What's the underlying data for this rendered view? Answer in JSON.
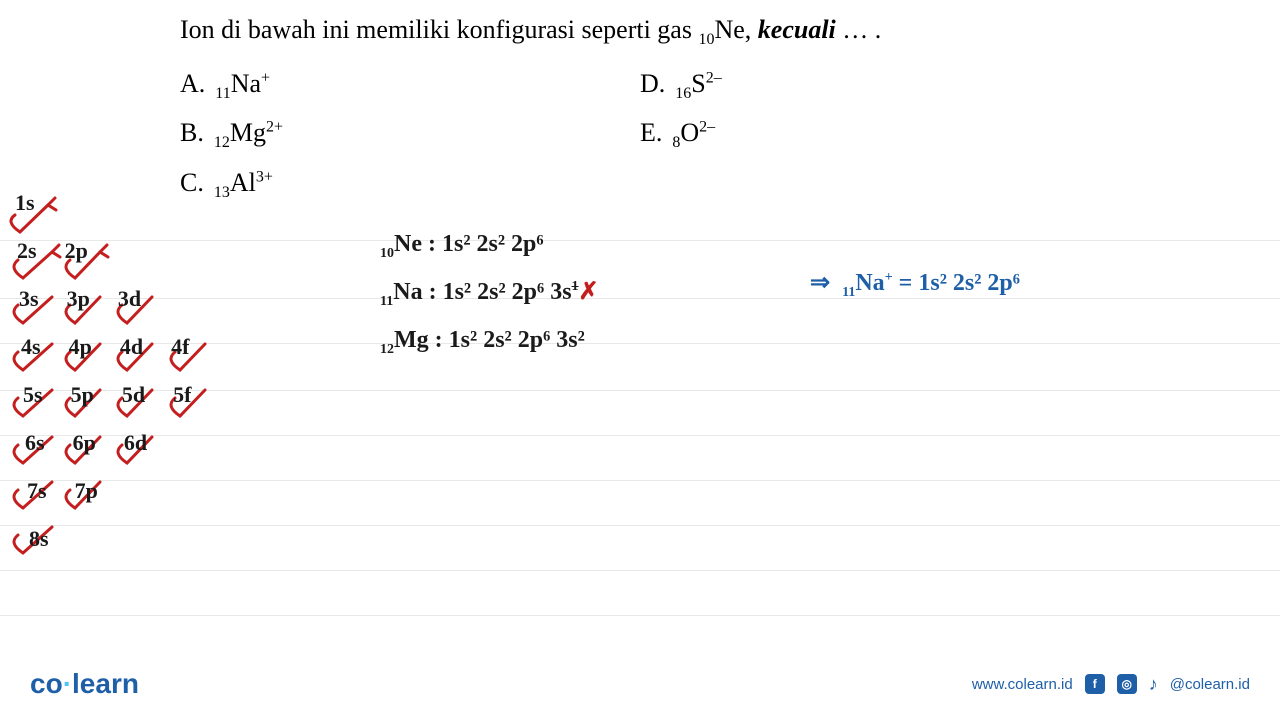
{
  "question": {
    "prefix": "Ion di bawah ini memiliki konfigurasi seperti gas ",
    "gas_sub": "10",
    "gas_symbol": "Ne, ",
    "except_word": "kecuali",
    "suffix": " … ."
  },
  "options": {
    "A": {
      "label": "A.",
      "sub": "11",
      "element": "Na",
      "sup": "+"
    },
    "B": {
      "label": "B.",
      "sub": "12",
      "element": "Mg",
      "sup": "2+"
    },
    "C": {
      "label": "C.",
      "sub": "13",
      "element": "Al",
      "sup": "3+"
    },
    "D": {
      "label": "D.",
      "sub": "16",
      "element": "S",
      "sup": "2–"
    },
    "E": {
      "label": "E.",
      "sub": "8",
      "element": "O",
      "sup": "2–"
    }
  },
  "orbitals": {
    "rows": [
      [
        "1s"
      ],
      [
        "2s",
        "2p"
      ],
      [
        "3s",
        "3p",
        "3d"
      ],
      [
        "4s",
        "4p",
        "4d",
        "4f"
      ],
      [
        "5s",
        "5p",
        "5d",
        "5f"
      ],
      [
        "6s",
        "6p",
        "6d"
      ],
      [
        "7s",
        "7p"
      ],
      [
        "8s"
      ]
    ],
    "arrow_color": "#c41e1e",
    "text_color": "#1a1a1a"
  },
  "workings": {
    "line1": {
      "sub": "10",
      "el": "Ne",
      "config": "1s²  2s²  2p⁶"
    },
    "line2": {
      "sub": "11",
      "el": "Na",
      "config": "1s²  2s²  2p⁶ 3s",
      "strike_exp": "1",
      "mark": "✗"
    },
    "line3": {
      "sub": "12",
      "el": "Mg",
      "config": "1s²  2s²  2p⁶ 3s²"
    }
  },
  "answer": {
    "arrow": "⇒",
    "sub": "11",
    "el": "Na",
    "sup": "+",
    "config": "= 1s²  2s²  2p⁶",
    "color": "#1e5fa8"
  },
  "footer": {
    "logo_co": "co",
    "logo_learn": "learn",
    "url": "www.colearn.id",
    "handle": "@colearn.id"
  },
  "colors": {
    "black": "#1a1a1a",
    "blue": "#1e5fa8",
    "red": "#c41e1e",
    "rule": "#e8e8e8",
    "background": "#ffffff"
  },
  "ruled_line_positions": [
    240,
    298,
    343,
    390,
    435,
    480,
    525,
    570,
    615
  ]
}
